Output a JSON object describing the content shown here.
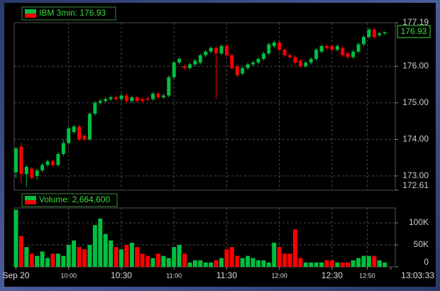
{
  "chart_data": [
    {
      "type": "candlestick",
      "title": "IBM 3min: 176.93",
      "x": [
        0,
        3,
        6,
        9,
        12,
        15,
        18,
        21,
        24,
        27,
        30,
        33,
        36,
        39,
        42,
        45,
        48,
        51,
        54,
        57,
        60,
        63,
        66,
        69,
        72,
        75,
        78,
        81,
        84,
        87,
        90,
        93,
        96,
        99,
        102,
        105,
        108,
        111,
        114,
        117,
        120,
        123,
        126,
        129,
        132,
        135,
        138,
        141,
        144,
        147,
        150,
        153,
        156,
        159,
        162,
        165,
        168,
        171,
        174,
        177,
        180,
        183,
        186,
        189,
        192,
        195,
        198,
        201,
        204,
        207,
        210
      ],
      "open": [
        173.1,
        173.8,
        173.05,
        173.2,
        173.0,
        173.15,
        173.3,
        173.4,
        173.3,
        173.6,
        173.9,
        174.2,
        174.35,
        174.1,
        174.0,
        174.7,
        175.0,
        175.05,
        175.1,
        175.15,
        175.1,
        175.2,
        175.05,
        175.15,
        175.1,
        175.12,
        175.1,
        175.25,
        175.15,
        175.2,
        175.7,
        176.1,
        176.0,
        175.95,
        176.05,
        176.1,
        176.3,
        176.4,
        176.5,
        176.35,
        176.55,
        176.3,
        176.0,
        175.8,
        175.95,
        176.05,
        176.1,
        176.2,
        176.35,
        176.55,
        176.65,
        176.45,
        176.3,
        176.25,
        176.15,
        176.0,
        176.1,
        176.2,
        176.4,
        176.55,
        176.55,
        176.45,
        176.5,
        176.35,
        176.25,
        176.4,
        176.6,
        176.8,
        177.0,
        176.85,
        176.9
      ],
      "high": [
        173.8,
        173.9,
        173.3,
        173.25,
        173.2,
        173.35,
        173.45,
        173.45,
        173.65,
        174.0,
        174.35,
        174.4,
        174.4,
        174.15,
        174.75,
        175.05,
        175.1,
        175.15,
        175.2,
        175.2,
        175.25,
        175.25,
        175.2,
        175.2,
        175.15,
        175.17,
        175.3,
        175.3,
        175.25,
        175.75,
        176.15,
        176.25,
        176.05,
        176.1,
        176.2,
        176.35,
        176.45,
        176.55,
        176.55,
        176.6,
        176.6,
        176.35,
        176.05,
        176.0,
        176.1,
        176.15,
        176.25,
        176.4,
        176.65,
        176.7,
        176.7,
        176.5,
        176.35,
        176.3,
        176.2,
        176.15,
        176.25,
        176.5,
        176.6,
        176.6,
        176.6,
        176.6,
        176.55,
        176.4,
        176.45,
        176.65,
        176.85,
        177.05,
        177.05,
        176.95,
        176.95
      ],
      "low": [
        172.95,
        172.8,
        172.7,
        172.9,
        172.9,
        173.1,
        173.25,
        173.25,
        173.25,
        173.55,
        173.85,
        174.15,
        173.95,
        173.95,
        173.95,
        174.65,
        174.95,
        175.0,
        175.05,
        175.05,
        175.05,
        175.0,
        175.0,
        175.0,
        175.0,
        175.05,
        175.05,
        175.1,
        175.1,
        175.15,
        175.65,
        176.05,
        175.9,
        175.9,
        176.0,
        176.05,
        176.25,
        176.35,
        175.1,
        176.3,
        176.25,
        175.9,
        175.7,
        175.75,
        175.9,
        176.0,
        176.05,
        176.15,
        176.3,
        176.5,
        176.4,
        176.25,
        176.2,
        176.05,
        175.95,
        175.95,
        176.05,
        176.15,
        176.35,
        176.45,
        176.4,
        176.4,
        176.25,
        176.2,
        176.2,
        176.35,
        176.55,
        176.75,
        176.75,
        176.8,
        176.85
      ],
      "close": [
        173.75,
        173.05,
        173.25,
        172.95,
        173.15,
        173.3,
        173.4,
        173.3,
        173.6,
        173.9,
        174.3,
        174.35,
        174.0,
        174.0,
        174.7,
        175.0,
        175.05,
        175.1,
        175.15,
        175.1,
        175.2,
        175.05,
        175.15,
        175.05,
        175.05,
        175.08,
        175.25,
        175.15,
        175.2,
        175.7,
        176.1,
        176.2,
        175.95,
        176.05,
        176.15,
        176.3,
        176.4,
        176.5,
        176.35,
        176.55,
        176.3,
        175.95,
        175.75,
        175.95,
        176.05,
        176.1,
        176.2,
        176.35,
        176.6,
        176.65,
        176.45,
        176.3,
        176.25,
        176.1,
        176.0,
        176.1,
        176.2,
        176.45,
        176.55,
        176.5,
        176.45,
        176.55,
        176.3,
        176.25,
        176.4,
        176.6,
        176.8,
        177.0,
        176.8,
        176.9,
        176.93
      ],
      "up_color": "#00c040",
      "down_color": "#ff0000",
      "xlim": [
        -1,
        216
      ],
      "xticks": [
        {
          "value": 0,
          "label": "Sep 20"
        },
        {
          "value": 30,
          "label": "10:00"
        },
        {
          "value": 60,
          "label": "10:30"
        },
        {
          "value": 90,
          "label": "11:00"
        },
        {
          "value": 120,
          "label": "11:30"
        },
        {
          "value": 150,
          "label": "12:00"
        },
        {
          "value": 180,
          "label": "12:30"
        },
        {
          "value": 200,
          "label": "12:50"
        },
        {
          "value": 213.55,
          "label": "13:03:33"
        }
      ],
      "ylim": [
        172.61,
        177.19
      ],
      "yticks": [
        {
          "value": 172.61,
          "label": "172.61"
        },
        {
          "value": 173,
          "label": "173.00"
        },
        {
          "value": 174,
          "label": "174.00"
        },
        {
          "value": 175,
          "label": "175.00"
        },
        {
          "value": 176,
          "label": "176.00"
        },
        {
          "value": 177.19,
          "label": "177.19"
        }
      ],
      "grid": true
    },
    {
      "type": "bar",
      "title": "Volume: 2,664,600",
      "values": [
        130000,
        70000,
        45000,
        30000,
        25000,
        35000,
        20000,
        30000,
        30000,
        25000,
        50000,
        60000,
        45000,
        40000,
        50000,
        95000,
        110000,
        75000,
        60000,
        45000,
        40000,
        50000,
        55000,
        45000,
        30000,
        25000,
        20000,
        30000,
        25000,
        20000,
        45000,
        50000,
        30000,
        10000,
        15000,
        15000,
        10000,
        10000,
        15000,
        20000,
        40000,
        45000,
        25000,
        20000,
        25000,
        20000,
        15000,
        15000,
        10000,
        55000,
        45000,
        30000,
        30000,
        85000,
        20000,
        10000,
        10000,
        10000,
        10000,
        15000,
        15000,
        10000,
        10000,
        10000,
        15000,
        20000,
        25000,
        25000,
        25000,
        15000,
        10000
      ],
      "ylim": [
        0,
        134000
      ],
      "yticks": [
        0,
        {
          "value": 50000,
          "label": "50K"
        },
        {
          "value": 100000,
          "label": "100K"
        }
      ],
      "grid": true
    }
  ]
}
